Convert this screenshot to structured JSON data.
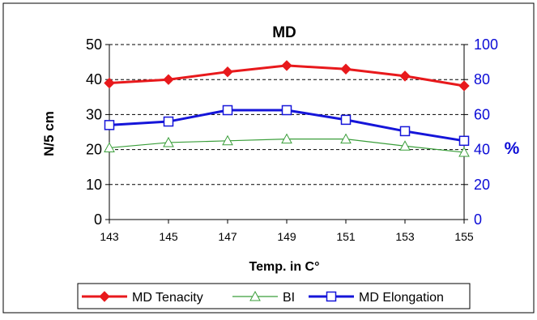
{
  "chart_data": {
    "type": "line",
    "title": "MD",
    "xlabel": "Temp. in C°",
    "ylabel_left": "N/5 cm",
    "ylabel_right": "%",
    "categories": [
      "143",
      "145",
      "147",
      "149",
      "151",
      "153",
      "155"
    ],
    "ylim_left": [
      0,
      50
    ],
    "yticks_left": [
      0,
      10,
      20,
      30,
      40,
      50
    ],
    "ylim_right": [
      0,
      100
    ],
    "yticks_right": [
      0,
      20,
      40,
      60,
      80,
      100
    ],
    "grid": "horizontal-dashed",
    "legend_position": "bottom",
    "series": [
      {
        "name": "MD Tenacity",
        "axis": "left",
        "color": "#e8191c",
        "marker": "diamond",
        "values": [
          39,
          40,
          42.2,
          44,
          43,
          41,
          38.2
        ]
      },
      {
        "name": "BI",
        "axis": "left",
        "color": "#3a9e3a",
        "marker": "triangle",
        "values": [
          20.5,
          22,
          22.5,
          23,
          23,
          21,
          19.2
        ]
      },
      {
        "name": "MD Elongation",
        "axis": "right",
        "color": "#1515d9",
        "marker": "square",
        "values": [
          54,
          56,
          62.5,
          62.5,
          57,
          50.5,
          45
        ]
      }
    ]
  },
  "colors": {
    "left_axis_text": "#000000",
    "right_axis_text": "#0b0bd6"
  }
}
